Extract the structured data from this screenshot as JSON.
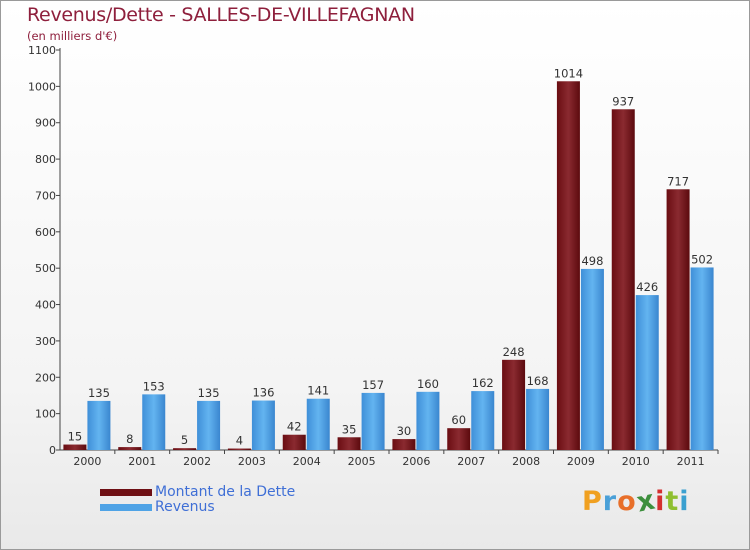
{
  "chart_data": {
    "type": "bar",
    "title": "Revenus/Dette - SALLES-DE-VILLEFAGNAN",
    "subtitle": "(en milliers d'€)",
    "xlabel": "",
    "ylabel": "",
    "ylim": [
      0,
      1100
    ],
    "yticks": [
      0,
      100,
      200,
      300,
      400,
      500,
      600,
      700,
      800,
      900,
      1000,
      1100
    ],
    "categories": [
      "2000",
      "2001",
      "2002",
      "2003",
      "2004",
      "2005",
      "2006",
      "2007",
      "2008",
      "2009",
      "2010",
      "2011"
    ],
    "series": [
      {
        "name": "Montant de la Dette",
        "color": "#7a1418",
        "values": [
          15,
          8,
          5,
          4,
          42,
          35,
          30,
          60,
          248,
          1014,
          937,
          717
        ]
      },
      {
        "name": "Revenus",
        "color": "#4fa3e6",
        "values": [
          135,
          153,
          135,
          136,
          141,
          157,
          160,
          162,
          168,
          498,
          426,
          502
        ]
      }
    ],
    "grid": false,
    "legend_position": "bottom-left"
  },
  "branding": {
    "logo_letters": [
      "P",
      "r",
      "o",
      "x",
      "i",
      "t",
      "i"
    ],
    "logo_colors": [
      "#f0a020",
      "#4aa0d8",
      "#e86f2a",
      "#3d8f3d",
      "#d43030",
      "#8fbf30",
      "#3aa0d0"
    ]
  }
}
